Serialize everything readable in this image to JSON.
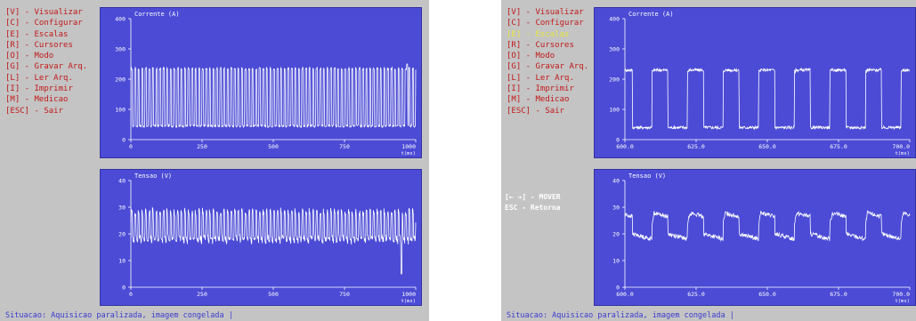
{
  "screens": [
    {
      "menu": [
        "[V] - Visualizar",
        "[C] - Configurar",
        "[E] - Escalas",
        "[R] - Cursores",
        "[O] - Modo",
        "[G] - Gravar Arq.",
        "[L] - Ler Arq.",
        "[I] - Imprimir",
        "[M] - Medicao",
        "[ESC] - Sair"
      ],
      "active_menu": -1,
      "hints": [],
      "status": "Situacao: Aquisicao paralizada, imagem congelada |",
      "chart_data": [
        {
          "type": "line",
          "title": "Corrente (A)",
          "xlabel": "t(ms)",
          "ylim": [
            0,
            400
          ],
          "xlim": [
            0,
            1000
          ],
          "yticks": [
            "400",
            "300",
            "200",
            "100",
            "0"
          ],
          "xticks": [
            "0",
            "250",
            "500",
            "750",
            "1000"
          ],
          "signal": {
            "kind": "square",
            "low": 45,
            "high": 235,
            "period_x": 12.5,
            "duty": 0.4,
            "noise": 4,
            "spike_x": 970,
            "spike_v": 250
          }
        },
        {
          "type": "line",
          "title": "Tensao (V)",
          "xlabel": "t(ms)",
          "ylim": [
            0,
            40
          ],
          "xlim": [
            0,
            1000
          ],
          "yticks": [
            "40",
            "30",
            "20",
            "10",
            "0"
          ],
          "xticks": [
            "0",
            "250",
            "500",
            "750",
            "1000"
          ],
          "signal": {
            "kind": "pulse",
            "low": 17,
            "high": 29,
            "period_x": 12.5,
            "duty": 0.4,
            "noise": 1.2,
            "dip_x": 950,
            "dip_v": 5
          }
        }
      ]
    },
    {
      "menu": [
        "[V] - Visualizar",
        "[C] - Configurar",
        "[E] - Escalas",
        "[R] - Cursores",
        "[O] - Modo",
        "[G] - Gravar Arq.",
        "[L] - Ler Arq.",
        "[I] - Imprimir",
        "[M] - Medicao",
        "[ESC] - Sair"
      ],
      "active_menu": 2,
      "hints": [
        "[← →] - MOVER",
        "ESC - Retorna"
      ],
      "status": "Situacao: Aquisicao paralizada, imagem congelada |",
      "chart_data": [
        {
          "type": "line",
          "title": "Corrente (A)",
          "xlabel": "t(ms)",
          "ylim": [
            0,
            400
          ],
          "xlim": [
            600,
            700
          ],
          "yticks": [
            "400",
            "300",
            "200",
            "100",
            "0"
          ],
          "xticks": [
            "600.0",
            "625.0",
            "650.0",
            "675.0",
            "700.0"
          ],
          "signal": {
            "kind": "square",
            "low": 40,
            "high": 230,
            "period_x": 12.5,
            "duty": 0.45,
            "noise": 5,
            "phase": 3
          }
        },
        {
          "type": "line",
          "title": "Tensao (V)",
          "xlabel": "t(ms)",
          "ylim": [
            0,
            40
          ],
          "xlim": [
            600,
            700
          ],
          "yticks": [
            "40",
            "30",
            "20",
            "10",
            "0"
          ],
          "xticks": [
            "600.0",
            "625.0",
            "650.0",
            "675.0",
            "700.0"
          ],
          "signal": {
            "kind": "pulse",
            "low": 18,
            "high": 28,
            "period_x": 12.5,
            "duty": 0.45,
            "noise": 0.8,
            "phase": 3
          }
        }
      ]
    }
  ]
}
